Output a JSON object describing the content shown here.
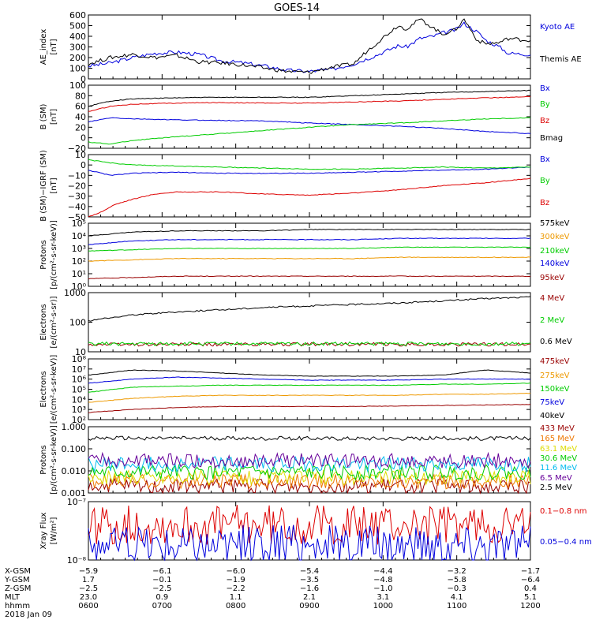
{
  "title": "GOES-14",
  "colors": {
    "black": "#000000",
    "blue": "#0000dd",
    "red": "#dd0000",
    "green": "#00cc00",
    "orange": "#ee9900",
    "darkred": "#990000",
    "cyan": "#00bbee",
    "yellow": "#dddd00",
    "purple": "#660099"
  },
  "chart_data": [
    {
      "type": "line",
      "ylabel": [
        "AE_index",
        "[nT]"
      ],
      "ylim": [
        0,
        600
      ],
      "ticks": [
        "600",
        "500",
        "400",
        "300",
        "200",
        "100",
        "0"
      ],
      "series": [
        {
          "name": "Kyoto AE",
          "color": "#0000dd",
          "x": [
            0,
            0.05,
            0.1,
            0.15,
            0.2,
            0.25,
            0.3,
            0.35,
            0.4,
            0.45,
            0.5,
            0.55,
            0.6,
            0.65,
            0.7,
            0.72,
            0.75,
            0.78,
            0.8,
            0.83,
            0.85,
            0.88,
            0.9,
            0.93,
            0.95,
            1.0
          ],
          "y": [
            120,
            150,
            200,
            240,
            250,
            230,
            170,
            150,
            120,
            80,
            70,
            90,
            140,
            220,
            310,
            300,
            380,
            400,
            430,
            460,
            520,
            440,
            360,
            300,
            240,
            230
          ]
        },
        {
          "name": "Themis AE",
          "color": "#000000",
          "x": [
            0,
            0.05,
            0.1,
            0.15,
            0.2,
            0.25,
            0.3,
            0.35,
            0.4,
            0.45,
            0.5,
            0.55,
            0.6,
            0.63,
            0.67,
            0.7,
            0.72,
            0.75,
            0.78,
            0.8,
            0.83,
            0.85,
            0.88,
            0.9,
            0.93,
            0.95,
            1.0
          ],
          "y": [
            140,
            200,
            230,
            200,
            220,
            160,
            150,
            130,
            100,
            70,
            60,
            110,
            140,
            260,
            400,
            500,
            470,
            560,
            480,
            420,
            460,
            560,
            360,
            330,
            340,
            380,
            360
          ]
        }
      ]
    },
    {
      "type": "line",
      "ylabel": [
        "B (SM)",
        "[nT]"
      ],
      "ylim": [
        -20,
        100
      ],
      "ticks": [
        "100",
        "80",
        "60",
        "40",
        "20",
        "0",
        "−20"
      ],
      "series": [
        {
          "name": "Bx",
          "color": "#0000dd",
          "x": [
            0,
            0.05,
            0.1,
            0.2,
            0.3,
            0.4,
            0.5,
            0.6,
            0.7,
            0.8,
            0.9,
            1.0
          ],
          "y": [
            30,
            38,
            36,
            34,
            33,
            32,
            28,
            25,
            22,
            18,
            12,
            8
          ]
        },
        {
          "name": "By",
          "color": "#00cc00",
          "x": [
            0,
            0.05,
            0.1,
            0.2,
            0.3,
            0.4,
            0.5,
            0.6,
            0.7,
            0.8,
            0.9,
            1.0
          ],
          "y": [
            -8,
            -12,
            -5,
            2,
            8,
            14,
            20,
            25,
            28,
            32,
            36,
            38
          ]
        },
        {
          "name": "Bz",
          "color": "#dd0000",
          "x": [
            0,
            0.05,
            0.1,
            0.2,
            0.3,
            0.4,
            0.5,
            0.6,
            0.7,
            0.8,
            0.9,
            1.0
          ],
          "y": [
            50,
            60,
            64,
            66,
            67,
            66,
            66,
            68,
            70,
            73,
            76,
            78
          ]
        },
        {
          "name": "Bmag",
          "color": "#000000",
          "x": [
            0,
            0.05,
            0.1,
            0.2,
            0.3,
            0.4,
            0.5,
            0.6,
            0.7,
            0.8,
            0.9,
            1.0
          ],
          "y": [
            60,
            70,
            74,
            76,
            77,
            77,
            77,
            80,
            83,
            86,
            88,
            90
          ]
        }
      ]
    },
    {
      "type": "line",
      "ylabel": [
        "B (SM)−IGRF (SM)",
        "[nT]"
      ],
      "ylim": [
        -50,
        10
      ],
      "ticks": [
        "10",
        "0",
        "−10",
        "−20",
        "−30",
        "−40",
        "−50"
      ],
      "series": [
        {
          "name": "Bx",
          "color": "#0000dd",
          "x": [
            0,
            0.05,
            0.1,
            0.2,
            0.3,
            0.4,
            0.5,
            0.6,
            0.7,
            0.8,
            0.9,
            1.0
          ],
          "y": [
            -5,
            -10,
            -8,
            -7,
            -8,
            -8,
            -8,
            -7,
            -6,
            -5,
            -4,
            -2
          ]
        },
        {
          "name": "By",
          "color": "#00cc00",
          "x": [
            0,
            0.05,
            0.1,
            0.2,
            0.3,
            0.4,
            0.5,
            0.6,
            0.7,
            0.8,
            0.9,
            1.0
          ],
          "y": [
            5,
            2,
            0,
            -1,
            -2,
            -3,
            -4,
            -4,
            -3,
            -2,
            -3,
            -2
          ]
        },
        {
          "name": "Bz",
          "color": "#dd0000",
          "x": [
            0,
            0.03,
            0.06,
            0.1,
            0.15,
            0.2,
            0.3,
            0.4,
            0.5,
            0.6,
            0.7,
            0.8,
            0.9,
            1.0
          ],
          "y": [
            -50,
            -45,
            -38,
            -33,
            -28,
            -26,
            -26,
            -28,
            -29,
            -27,
            -24,
            -20,
            -17,
            -13
          ]
        }
      ]
    },
    {
      "type": "line",
      "ylabel": [
        "Protons",
        "[p/(cm²-s-sr-keV)]"
      ],
      "ylim_log": [
        0,
        5
      ],
      "ticks": [
        "10⁵",
        "10⁴",
        "10³",
        "10²",
        "10¹",
        "10⁰"
      ],
      "series": [
        {
          "name": "575keV",
          "color": "#000000",
          "y_log": [
            4.0,
            4.3,
            4.4,
            4.4,
            4.4,
            4.5,
            4.5,
            4.5,
            4.5,
            4.5,
            4.5
          ]
        },
        {
          "name": "300keV",
          "color": "#ee9900",
          "y_log": [
            2.0,
            2.1,
            2.2,
            2.2,
            2.2,
            2.2,
            2.2,
            2.3,
            2.3,
            2.3,
            2.3
          ]
        },
        {
          "name": "210keV",
          "color": "#00cc00",
          "y_log": [
            2.8,
            2.9,
            3.0,
            3.0,
            3.0,
            3.0,
            3.0,
            3.1,
            3.1,
            3.1,
            3.1
          ]
        },
        {
          "name": "140keV",
          "color": "#0000dd",
          "y_log": [
            3.3,
            3.6,
            3.7,
            3.7,
            3.7,
            3.7,
            3.7,
            3.8,
            3.8,
            3.8,
            3.8
          ]
        },
        {
          "name": "95keV",
          "color": "#990000",
          "y_log": [
            0.6,
            0.7,
            0.8,
            0.8,
            0.8,
            0.8,
            0.8,
            0.8,
            0.8,
            0.8,
            0.8
          ]
        }
      ]
    },
    {
      "type": "line",
      "ylabel": [
        "Electrons",
        "[e/(cm²-s-sr)]"
      ],
      "ylim_log": [
        1,
        3
      ],
      "ticks": [
        "1000",
        "100",
        "10"
      ],
      "series": [
        {
          "name": "4 MeV",
          "color": "#990000",
          "y_log": [
            1.25,
            1.25,
            1.25,
            1.25,
            1.25,
            1.25,
            1.25,
            1.25,
            1.25,
            1.25,
            1.25
          ]
        },
        {
          "name": "2 MeV",
          "color": "#00cc00",
          "y_log": [
            1.27,
            1.27,
            1.27,
            1.27,
            1.27,
            1.27,
            1.27,
            1.27,
            1.27,
            1.27,
            1.27
          ]
        },
        {
          "name": "0.6 MeV",
          "color": "#000000",
          "y_log": [
            2.05,
            2.25,
            2.35,
            2.42,
            2.5,
            2.55,
            2.6,
            2.65,
            2.72,
            2.8,
            2.85
          ]
        }
      ]
    },
    {
      "type": "line",
      "ylabel": [
        "Electrons",
        "[e/(cm²-s-sr-keV)]"
      ],
      "ylim_log": [
        2,
        8
      ],
      "ticks": [
        "10⁸",
        "10⁷",
        "10⁶",
        "10⁵",
        "10⁴",
        "10³",
        "10²"
      ],
      "series": [
        {
          "name": "475keV",
          "color": "#990000",
          "y_log": [
            2.7,
            3.0,
            3.2,
            3.3,
            3.3,
            3.3,
            3.3,
            3.35,
            3.4,
            3.45,
            3.5
          ]
        },
        {
          "name": "275keV",
          "color": "#ee9900",
          "y_log": [
            3.7,
            4.1,
            4.3,
            4.4,
            4.4,
            4.4,
            4.4,
            4.4,
            4.5,
            4.5,
            4.6
          ]
        },
        {
          "name": "150keV",
          "color": "#00cc00",
          "y_log": [
            4.7,
            5.2,
            5.3,
            5.4,
            5.4,
            5.4,
            5.4,
            5.4,
            5.5,
            5.5,
            5.6
          ]
        },
        {
          "name": "75keV",
          "color": "#0000dd",
          "y_log": [
            5.6,
            6.0,
            6.2,
            6.1,
            6.0,
            5.9,
            5.9,
            5.9,
            6.0,
            6.0,
            6.0
          ]
        },
        {
          "name": "40keV",
          "color": "#000000",
          "y_log": [
            6.4,
            6.9,
            6.8,
            6.6,
            6.4,
            6.3,
            6.3,
            6.3,
            6.4,
            6.9,
            6.6
          ]
        }
      ]
    },
    {
      "type": "line",
      "ylabel": [
        "Protons",
        "[p/(cm²-s-sr-keV)]"
      ],
      "ylim_log": [
        -3,
        1
      ],
      "ticks": [
        "1.000",
        "0.100",
        "0.010",
        "0.001"
      ],
      "series": [
        {
          "name": "433 MeV",
          "color": "#990000",
          "level": -2.6
        },
        {
          "name": "165 MeV",
          "color": "#ee7700",
          "level": -2.3
        },
        {
          "name": "63.1 MeV",
          "color": "#dddd00",
          "level": -2.05
        },
        {
          "name": "30.6 MeV",
          "color": "#00cc00",
          "level": -1.75
        },
        {
          "name": "11.6 MeV",
          "color": "#00bbee",
          "level": -1.25
        },
        {
          "name": "6.5 MeV",
          "color": "#660099",
          "level": -1.05
        },
        {
          "name": "2.5 MeV",
          "color": "#000000",
          "level": 0.3
        }
      ]
    },
    {
      "type": "line",
      "ylabel": [
        "Xray Flux",
        "[W/m²]"
      ],
      "ylim_log": [
        -8,
        -7
      ],
      "ticks": [
        "10⁻⁷",
        "10⁻⁸"
      ],
      "series": [
        {
          "name": "0.1−0.8 nm",
          "color": "#dd0000",
          "level": -7.4
        },
        {
          "name": "0.05−0.4 nm",
          "color": "#0000dd",
          "level": -7.75
        }
      ]
    }
  ],
  "xaxis": {
    "rows": [
      {
        "label": "X-GSM",
        "values": [
          "−5.9",
          "−6.1",
          "−6.0",
          "−5.4",
          "−4.4",
          "−3.2",
          "−1.7"
        ]
      },
      {
        "label": "Y-GSM",
        "values": [
          "1.7",
          "−0.1",
          "−1.9",
          "−3.5",
          "−4.8",
          "−5.8",
          "−6.4"
        ]
      },
      {
        "label": "Z-GSM",
        "values": [
          "−2.5",
          "−2.5",
          "−2.2",
          "−1.6",
          "−1.0",
          "−0.3",
          "0.4"
        ]
      },
      {
        "label": "MLT",
        "values": [
          "23.0",
          "0.9",
          "1.1",
          "2.1",
          "3.1",
          "4.1",
          "5.1"
        ]
      },
      {
        "label": "hhmm",
        "values": [
          "0600",
          "0700",
          "0800",
          "0900",
          "1000",
          "1100",
          "1200"
        ]
      }
    ],
    "date": "2018 Jan 09"
  }
}
